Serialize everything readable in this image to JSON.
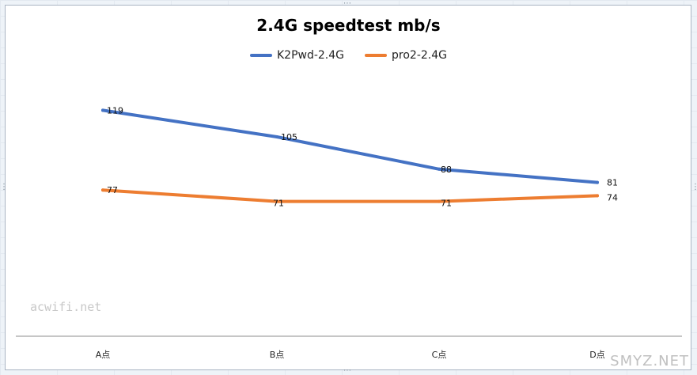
{
  "chart_data": {
    "type": "line",
    "title": "2.4G speedtest  mb/s",
    "categories": [
      "A点",
      "B点",
      "C点",
      "D点"
    ],
    "series": [
      {
        "name": "K2Pwd-2.4G",
        "values": [
          119,
          105,
          88,
          81
        ],
        "color": "#4472c4"
      },
      {
        "name": "pro2-2.4G",
        "values": [
          77,
          71,
          71,
          74
        ],
        "color": "#ed7d31"
      }
    ],
    "xlabel": "",
    "ylabel": "",
    "ylim": [
      0,
      140
    ],
    "grid": false,
    "legend": "top"
  },
  "watermarks": {
    "left": "acwifi.net",
    "right": "SMYZ.NET"
  }
}
